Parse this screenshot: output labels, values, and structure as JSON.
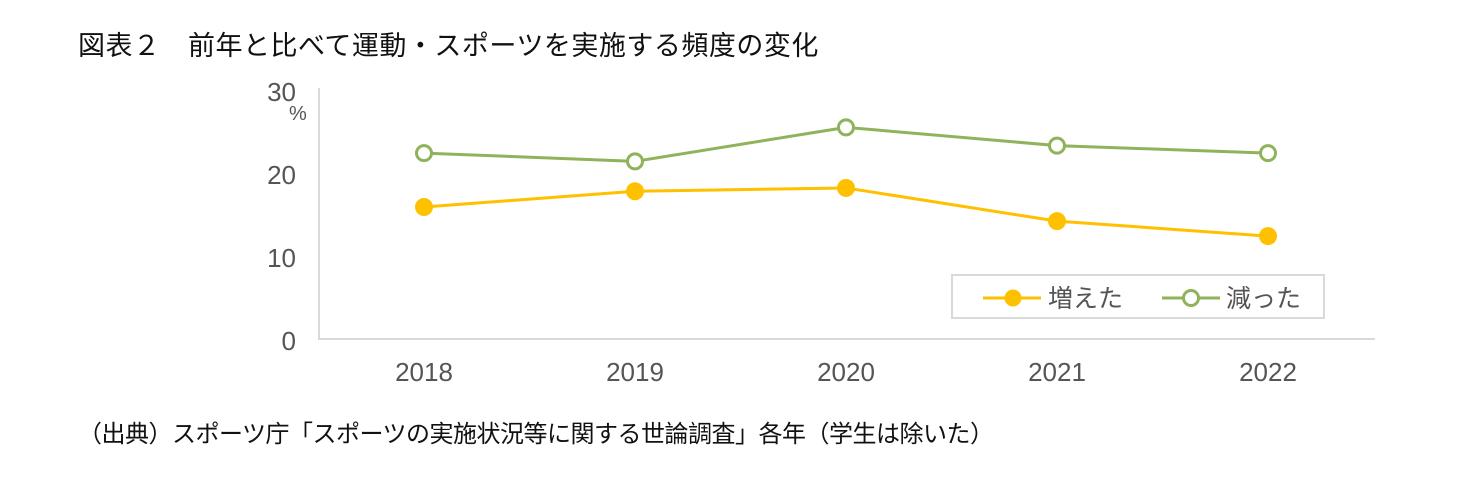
{
  "header": {
    "title": "図表２　前年と比べて運動・スポーツを実施する頻度の変化"
  },
  "footer": {
    "source": "（出典）スポーツ庁「スポーツの実施状況等に関する世論調査」各年（学生は除いた）"
  },
  "axis": {
    "y_ticks": [
      "0",
      "10",
      "20",
      "30"
    ],
    "y_unit": "%",
    "x_ticks": [
      "2018",
      "2019",
      "2020",
      "2021",
      "2022"
    ]
  },
  "legend": {
    "items": [
      {
        "label": "増えた",
        "color": "#FFC000",
        "marker": "filled-circle"
      },
      {
        "label": "減った",
        "color": "#8FB35A",
        "marker": "hollow-circle"
      }
    ]
  },
  "chart_data": {
    "type": "line",
    "title": "図表２　前年と比べて運動・スポーツを実施する頻度の変化",
    "xlabel": "",
    "ylabel": "%",
    "categories": [
      "2018",
      "2019",
      "2020",
      "2021",
      "2022"
    ],
    "ylim": [
      0,
      30
    ],
    "yticks": [
      0,
      10,
      20,
      30
    ],
    "grid": false,
    "legend_position": "inside lower right",
    "series": [
      {
        "name": "増えた",
        "color": "#FFC000",
        "marker": "filled-circle",
        "values": [
          15.9,
          17.8,
          18.2,
          14.2,
          12.4
        ]
      },
      {
        "name": "減った",
        "color": "#8FB35A",
        "marker": "hollow-circle",
        "values": [
          22.4,
          21.4,
          25.5,
          23.3,
          22.4
        ]
      }
    ],
    "annotations": [
      "（出典）スポーツ庁「スポーツの実施状況等に関する世論調査」各年（学生は除いた）"
    ]
  }
}
